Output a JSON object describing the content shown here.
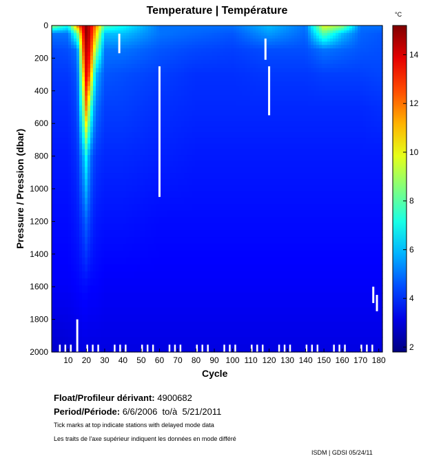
{
  "chart_data": {
    "type": "heatmap",
    "title": "Temperature | Température",
    "xlabel": "Cycle",
    "ylabel": "Pressure / Pression (dbar)",
    "xlim": [
      1,
      182
    ],
    "ylim": [
      0,
      2000
    ],
    "y_inverted": true,
    "xticks": [
      10,
      20,
      30,
      40,
      50,
      60,
      70,
      80,
      90,
      100,
      110,
      120,
      130,
      140,
      150,
      160,
      170,
      180
    ],
    "yticks": [
      0,
      200,
      400,
      600,
      800,
      1000,
      1200,
      1400,
      1600,
      1800,
      2000
    ],
    "colorbar": {
      "unit": "°C",
      "range": [
        1.8,
        15.2
      ],
      "ticks": [
        2,
        4,
        6,
        8,
        10,
        12,
        14
      ],
      "colormap": "jet"
    },
    "grid_cycles": [
      1,
      10,
      15,
      18,
      20,
      22,
      25,
      30,
      40,
      60,
      80,
      100,
      120,
      140,
      150,
      160,
      170,
      182
    ],
    "grid_pressures": [
      0,
      50,
      150,
      300,
      500,
      800,
      1200,
      1600,
      2000
    ],
    "temperature": [
      [
        9,
        7,
        12,
        14,
        15,
        14,
        12,
        8,
        7,
        5,
        5,
        5,
        6,
        5,
        10,
        9,
        5,
        5
      ],
      [
        5,
        5,
        8,
        13,
        15,
        14,
        11,
        6,
        6,
        5,
        4.8,
        4.6,
        5.5,
        4.8,
        8,
        6,
        4.8,
        4.6
      ],
      [
        4.4,
        4.5,
        5,
        12,
        14.5,
        13.5,
        9,
        5,
        5,
        4.6,
        4.4,
        4.3,
        4.5,
        4.5,
        5,
        4.8,
        4.6,
        4.5
      ],
      [
        4.2,
        4.2,
        4.6,
        10,
        14,
        12,
        6,
        4.6,
        4.5,
        4.3,
        4.1,
        4.1,
        4.2,
        4.2,
        4.3,
        4.3,
        4.3,
        4.4
      ],
      [
        4,
        4,
        4.4,
        8,
        12,
        8,
        5,
        4.3,
        4.3,
        4.1,
        4,
        4,
        4,
        4,
        4,
        4,
        4,
        4.1
      ],
      [
        3.8,
        3.8,
        4.1,
        5.5,
        7,
        5,
        4.2,
        4,
        4,
        3.9,
        3.8,
        3.8,
        3.8,
        3.8,
        3.8,
        3.8,
        3.8,
        3.8
      ],
      [
        3.6,
        3.6,
        3.8,
        4.3,
        4.8,
        4.2,
        3.8,
        3.7,
        3.7,
        3.6,
        3.6,
        3.6,
        3.6,
        3.6,
        3.6,
        3.6,
        3.6,
        3.6
      ],
      [
        3.4,
        3.4,
        3.5,
        3.6,
        3.6,
        3.5,
        3.5,
        3.4,
        3.4,
        3.4,
        3.4,
        3.4,
        3.4,
        3.4,
        3.4,
        3.4,
        3.4,
        3.4
      ],
      [
        2.8,
        2.9,
        3,
        3.1,
        3.1,
        3.1,
        3.1,
        3.1,
        3.1,
        3.1,
        3.1,
        3.1,
        3.1,
        3.1,
        3.1,
        3.1,
        3.1,
        3.1
      ]
    ],
    "missing_segments": [
      {
        "cycle": 38,
        "from": 50,
        "to": 170
      },
      {
        "cycle": 60,
        "from": 250,
        "to": 1050
      },
      {
        "cycle": 118,
        "from": 80,
        "to": 210
      },
      {
        "cycle": 120,
        "from": 250,
        "to": 550
      },
      {
        "cycle": 177,
        "from": 1600,
        "to": 1700
      },
      {
        "cycle": 179,
        "from": 1650,
        "to": 1750
      },
      {
        "cycle": 15,
        "from": 1800,
        "to": 2000
      }
    ]
  },
  "info": {
    "float_label": "Float/Profileur dérivant:",
    "float_id": "4900682",
    "period_label": "Period/Période:",
    "period_start": "6/6/2006",
    "period_to": "to/à",
    "period_end": "5/21/2011",
    "note_en": "Tick marks at top indicate stations with delayed mode data",
    "note_fr": "Les traits de l'axe supérieur indiquent les données en mode différé",
    "credit": "ISDM | GDSI  05/24/11"
  }
}
